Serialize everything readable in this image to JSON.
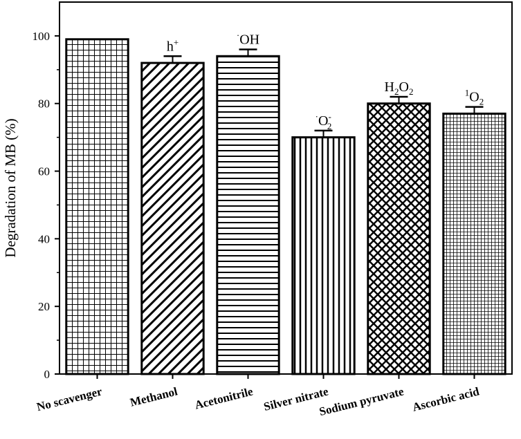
{
  "chart_data": {
    "type": "bar",
    "title": "",
    "xlabel": "",
    "ylabel": "Degradation of MB (%)",
    "ylim": [
      0,
      110
    ],
    "yticks": [
      0,
      20,
      40,
      60,
      80,
      100
    ],
    "grid": false,
    "legend": "none",
    "categories": [
      "No scavenger",
      "Methanol",
      "Acetonitrile",
      "Silver nitrate",
      "Sodium pyruvate",
      "Ascorbic acid"
    ],
    "values": [
      99,
      92,
      94,
      70,
      80,
      77
    ],
    "errors": [
      0,
      2,
      2,
      2,
      2,
      2
    ],
    "patterns": [
      "grid",
      "diagonal",
      "horizontal",
      "vertical",
      "crosshatch",
      "fine-grid"
    ],
    "annotations": [
      {
        "base": "",
        "super": "",
        "sub": "",
        "post": "",
        "post_sub": ""
      },
      {
        "base": "h",
        "super": "+",
        "sub": "",
        "post": "",
        "post_sub": ""
      },
      {
        "base": "OH",
        "super": "",
        "sub": "",
        "post": "",
        "post_sub": "",
        "dot": "·"
      },
      {
        "base": "O",
        "super": "-",
        "sub": "2",
        "post": "",
        "post_sub": "",
        "dot": "·"
      },
      {
        "base": "H",
        "super": "",
        "sub": "2",
        "post": "O",
        "post_sub": "2"
      },
      {
        "base": "O",
        "super": "",
        "sub": "2",
        "post": "",
        "post_sub": "",
        "pre_super": "1"
      }
    ]
  }
}
